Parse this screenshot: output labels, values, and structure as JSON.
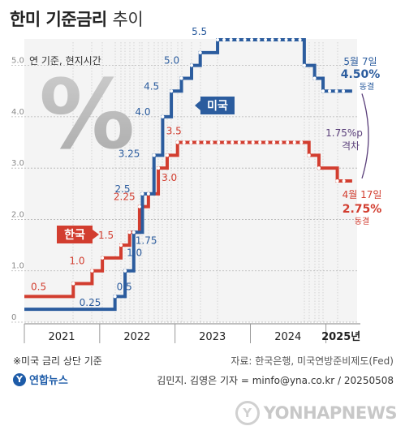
{
  "header": {
    "title_bold": "한미 기준금리",
    "title_light": "추이"
  },
  "chart_data": {
    "type": "line",
    "subtitle": "연 기준, 현지시간",
    "ylim": [
      0,
      5.5
    ],
    "y_ticks": [
      "0",
      "1.0",
      "2.0",
      "3.0",
      "4.0",
      "5.0"
    ],
    "x_labels": [
      "2021",
      "2022",
      "2023",
      "2024",
      "2025년"
    ],
    "grid": true,
    "series": [
      {
        "name": "한국",
        "color": "#d23d2f",
        "x": [
          "2021-01-01",
          "2021-08-26",
          "2021-11-25",
          "2022-01-14",
          "2022-04-14",
          "2022-05-26",
          "2022-07-13",
          "2022-08-25",
          "2022-10-12",
          "2022-11-24",
          "2023-01-13",
          "2024-10-11",
          "2024-11-28",
          "2025-02-25",
          "2025-05-08"
        ],
        "values": [
          0.5,
          0.75,
          1.0,
          1.25,
          1.5,
          1.75,
          2.25,
          2.5,
          3.0,
          3.25,
          3.5,
          3.25,
          3.0,
          2.75,
          2.75
        ],
        "labels": [
          {
            "v": 0.5,
            "text": "0.5"
          },
          {
            "v": 1.0,
            "text": "1.0"
          },
          {
            "v": 1.5,
            "text": "1.5"
          },
          {
            "v": 2.25,
            "text": "2.25"
          },
          {
            "v": 3.0,
            "text": "3.0"
          },
          {
            "v": 3.5,
            "text": "3.5"
          }
        ]
      },
      {
        "name": "미국",
        "color": "#2b5c9e",
        "x": [
          "2021-01-01",
          "2022-03-16",
          "2022-05-04",
          "2022-06-15",
          "2022-07-27",
          "2022-09-21",
          "2022-11-02",
          "2022-12-14",
          "2023-02-01",
          "2023-03-22",
          "2023-05-03",
          "2023-07-26",
          "2024-09-18",
          "2024-11-07",
          "2024-12-18",
          "2025-05-08"
        ],
        "values": [
          0.25,
          0.5,
          1.0,
          1.75,
          2.5,
          3.25,
          4.0,
          4.5,
          4.75,
          5.0,
          5.25,
          5.5,
          5.0,
          4.75,
          4.5,
          4.5
        ],
        "labels": [
          {
            "v": 0.25,
            "text": "0.25"
          },
          {
            "v": 0.5,
            "text": "0.5"
          },
          {
            "v": 1.0,
            "text": "1.0"
          },
          {
            "v": 1.75,
            "text": "1.75"
          },
          {
            "v": 2.5,
            "text": "2.5"
          },
          {
            "v": 3.25,
            "text": "3.25"
          },
          {
            "v": 4.0,
            "text": "4.0"
          },
          {
            "v": 4.5,
            "text": "4.5"
          },
          {
            "v": 5.0,
            "text": "5.0"
          },
          {
            "v": 5.5,
            "text": "5.5"
          }
        ]
      }
    ],
    "annotations": {
      "us_date": "5월 7일",
      "us_value": "4.50%",
      "us_status": "동결",
      "kr_date": "4월 17일",
      "kr_value": "2.75%",
      "kr_status": "동결",
      "gap_value": "1.75%p",
      "gap_label": "격차"
    }
  },
  "footer": {
    "note": "※미국 금리 상단 기준",
    "source": "자료: 한국은행, 미국연방준비제도(Fed)",
    "credit": "김민지. 김영은 기자 = minfo@yna.co.kr / 20250508",
    "brand": "연합뉴스",
    "watermark": "YONHAPNEWS"
  },
  "colors": {
    "korea": "#d23d2f",
    "us": "#2b5c9e",
    "gap": "#5a3f7a",
    "grid": "#b5b5b5",
    "axis": "#999999"
  },
  "icons": {
    "percent": "percent-icon",
    "brand": "yonhap-logo-icon",
    "watermark": "yonhap-watermark-icon"
  }
}
